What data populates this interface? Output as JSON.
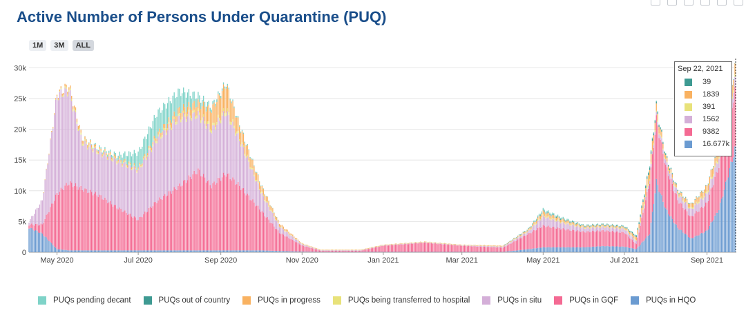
{
  "title": "Active Number of Persons Under Quarantine (PUQ)",
  "range_buttons": [
    "1M",
    "3M",
    "ALL"
  ],
  "chart_data": {
    "type": "bar",
    "stacked": true,
    "x_start": "2020-04-10",
    "x_end": "2021-09-22",
    "x_tick_labels": [
      "May 2020",
      "Jul 2020",
      "Sep 2020",
      "Nov 2020",
      "Jan 2021",
      "Mar 2021",
      "May 2021",
      "Jul 2021",
      "Sep 2021"
    ],
    "x_tick_dates": [
      "2020-05-01",
      "2020-07-01",
      "2020-09-01",
      "2020-11-01",
      "2021-01-01",
      "2021-03-01",
      "2021-05-01",
      "2021-07-01",
      "2021-09-01"
    ],
    "y_tick_labels": [
      "0",
      "5k",
      "10k",
      "15k",
      "20k",
      "25k",
      "30k"
    ],
    "y_ticks": [
      0,
      5000,
      10000,
      15000,
      20000,
      25000,
      30000
    ],
    "ylim": [
      0,
      31500
    ],
    "grid": true,
    "legend_position": "bottom",
    "keypoint_dates": [
      "2020-04-10",
      "2020-04-20",
      "2020-05-01",
      "2020-05-10",
      "2020-05-20",
      "2020-06-01",
      "2020-06-15",
      "2020-07-01",
      "2020-07-15",
      "2020-08-01",
      "2020-08-15",
      "2020-08-25",
      "2020-09-05",
      "2020-09-15",
      "2020-10-01",
      "2020-10-15",
      "2020-11-01",
      "2020-11-15",
      "2020-12-01",
      "2020-12-15",
      "2021-01-01",
      "2021-02-01",
      "2021-03-01",
      "2021-04-01",
      "2021-04-20",
      "2021-05-01",
      "2021-05-15",
      "2021-06-01",
      "2021-06-15",
      "2021-07-01",
      "2021-07-10",
      "2021-07-20",
      "2021-07-25",
      "2021-08-01",
      "2021-08-10",
      "2021-08-20",
      "2021-09-01",
      "2021-09-10",
      "2021-09-22"
    ],
    "series": [
      {
        "name": "PUQs pending decant",
        "color": "#7fd3c8",
        "values": [
          0,
          0,
          0,
          0,
          0,
          200,
          500,
          2500,
          3500,
          3000,
          1200,
          500,
          300,
          200,
          100,
          0,
          0,
          0,
          0,
          0,
          0,
          0,
          0,
          0,
          100,
          300,
          200,
          100,
          100,
          100,
          100,
          200,
          150,
          100,
          100,
          50,
          40,
          40,
          39
        ]
      },
      {
        "name": "PUQs out of country",
        "color": "#3e9a92",
        "values": [
          0,
          0,
          0,
          0,
          0,
          0,
          0,
          0,
          0,
          0,
          0,
          0,
          0,
          0,
          0,
          0,
          0,
          0,
          0,
          0,
          0,
          0,
          0,
          0,
          50,
          100,
          100,
          100,
          100,
          100,
          200,
          400,
          300,
          200,
          100,
          50,
          40,
          40,
          39
        ]
      },
      {
        "name": "PUQs in progress",
        "color": "#f9b261",
        "values": [
          0,
          0,
          200,
          500,
          500,
          300,
          300,
          200,
          500,
          1000,
          1500,
          3000,
          4000,
          2000,
          1000,
          400,
          100,
          50,
          50,
          50,
          50,
          50,
          50,
          100,
          200,
          600,
          400,
          200,
          200,
          200,
          500,
          1500,
          1200,
          600,
          400,
          600,
          1000,
          1500,
          1839
        ]
      },
      {
        "name": "PUQs being transferred to hospital",
        "color": "#e8e27a",
        "values": [
          0,
          0,
          100,
          300,
          300,
          200,
          200,
          200,
          300,
          400,
          400,
          400,
          500,
          300,
          200,
          100,
          50,
          20,
          20,
          20,
          20,
          20,
          20,
          20,
          100,
          200,
          150,
          100,
          100,
          100,
          150,
          300,
          200,
          150,
          150,
          200,
          250,
          300,
          391
        ]
      },
      {
        "name": "PUQs in situ",
        "color": "#d4afd8",
        "values": [
          500,
          4000,
          16000,
          15000,
          7500,
          7000,
          7500,
          8000,
          10000,
          11000,
          9000,
          9000,
          10000,
          7500,
          3000,
          1000,
          200,
          100,
          100,
          100,
          100,
          100,
          100,
          200,
          400,
          1500,
          1000,
          600,
          600,
          600,
          500,
          500,
          500,
          800,
          1000,
          1200,
          1500,
          1500,
          1562
        ]
      },
      {
        "name": "PUQs in GQF",
        "color": "#f46a93",
        "values": [
          500,
          1500,
          9000,
          11000,
          10000,
          9000,
          7000,
          5000,
          8000,
          10500,
          13000,
          10500,
          12500,
          10500,
          6500,
          3000,
          1000,
          200,
          200,
          200,
          1000,
          1500,
          1000,
          700,
          2500,
          3500,
          3000,
          2500,
          2500,
          2300,
          800,
          8500,
          10000,
          7000,
          4500,
          3500,
          4500,
          7000,
          9382
        ]
      },
      {
        "name": "PUQs in HQO",
        "color": "#6b9bd1",
        "values": [
          4000,
          3000,
          500,
          300,
          300,
          300,
          300,
          300,
          300,
          300,
          300,
          300,
          300,
          300,
          300,
          200,
          100,
          50,
          50,
          50,
          50,
          50,
          50,
          50,
          500,
          800,
          800,
          800,
          1000,
          900,
          500,
          3000,
          11500,
          7000,
          4000,
          2200,
          3500,
          7000,
          16677
        ]
      }
    ],
    "hover": {
      "date": "Sep 22, 2021",
      "values": [
        "39",
        "1839",
        "391",
        "1562",
        "9382",
        "16.677k"
      ],
      "colors": [
        "#3e9a92",
        "#f9b261",
        "#e8e27a",
        "#d4afd8",
        "#f46a93",
        "#6b9bd1"
      ]
    }
  }
}
